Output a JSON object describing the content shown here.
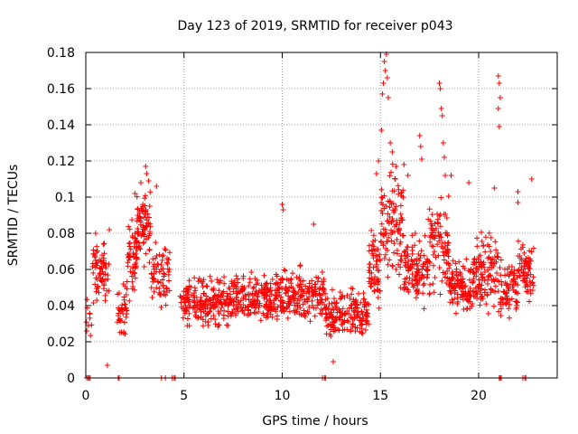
{
  "chart_data": {
    "type": "scatter",
    "title": "Day 123 of 2019, SRMTID for receiver p043",
    "xlabel": "GPS time / hours",
    "ylabel": "SRMTID / TECUs",
    "xlim": [
      0,
      24
    ],
    "ylim": [
      0,
      0.18
    ],
    "xticks": [
      0,
      5,
      10,
      15,
      20
    ],
    "xtick_labels": [
      "0",
      "5",
      "10",
      "15",
      "20"
    ],
    "yticks": [
      0,
      0.02,
      0.04,
      0.06,
      0.08,
      0.1,
      0.12,
      0.14,
      0.16,
      0.18
    ],
    "ytick_labels": [
      "0",
      "0.02",
      "0.04",
      "0.06",
      "0.08",
      "0.1",
      "0.12",
      "0.14",
      "0.16",
      "0.18"
    ],
    "grid": true,
    "marker": "+",
    "color": "#ff0000",
    "series": [
      {
        "name": "p043",
        "segments": [
          {
            "x_start": 0.0,
            "x_end": 0.3,
            "baseline": 0.03,
            "spread": 0.02,
            "count": 10
          },
          {
            "x_start": 0.3,
            "x_end": 1.2,
            "baseline": 0.058,
            "spread": 0.022,
            "count": 70
          },
          {
            "x_start": 1.6,
            "x_end": 2.1,
            "baseline": 0.038,
            "spread": 0.02,
            "count": 40
          },
          {
            "x_start": 2.1,
            "x_end": 2.6,
            "baseline": 0.065,
            "spread": 0.028,
            "count": 55
          },
          {
            "x_start": 2.6,
            "x_end": 3.3,
            "baseline": 0.085,
            "spread": 0.028,
            "count": 80
          },
          {
            "x_start": 3.3,
            "x_end": 4.3,
            "baseline": 0.058,
            "spread": 0.022,
            "count": 70
          },
          {
            "x_start": 4.8,
            "x_end": 7.5,
            "baseline": 0.042,
            "spread": 0.018,
            "count": 220
          },
          {
            "x_start": 7.5,
            "x_end": 9.5,
            "baseline": 0.043,
            "spread": 0.018,
            "count": 170
          },
          {
            "x_start": 9.5,
            "x_end": 12.2,
            "baseline": 0.045,
            "spread": 0.02,
            "count": 220
          },
          {
            "x_start": 12.2,
            "x_end": 14.4,
            "baseline": 0.036,
            "spread": 0.018,
            "count": 180
          },
          {
            "x_start": 14.4,
            "x_end": 15.0,
            "baseline": 0.06,
            "spread": 0.03,
            "count": 60
          },
          {
            "x_start": 15.0,
            "x_end": 16.2,
            "baseline": 0.085,
            "spread": 0.045,
            "count": 110
          },
          {
            "x_start": 16.2,
            "x_end": 17.4,
            "baseline": 0.06,
            "spread": 0.025,
            "count": 110
          },
          {
            "x_start": 17.4,
            "x_end": 18.5,
            "baseline": 0.072,
            "spread": 0.035,
            "count": 100
          },
          {
            "x_start": 18.5,
            "x_end": 19.7,
            "baseline": 0.05,
            "spread": 0.02,
            "count": 110
          },
          {
            "x_start": 19.7,
            "x_end": 21.0,
            "baseline": 0.06,
            "spread": 0.028,
            "count": 120
          },
          {
            "x_start": 21.0,
            "x_end": 22.0,
            "baseline": 0.05,
            "spread": 0.022,
            "count": 80
          },
          {
            "x_start": 22.0,
            "x_end": 22.8,
            "baseline": 0.058,
            "spread": 0.022,
            "count": 70
          }
        ],
        "spikes": [
          {
            "x": 0.5,
            "y": 0.08
          },
          {
            "x": 0.9,
            "y": 0.074
          },
          {
            "x": 1.2,
            "y": 0.082
          },
          {
            "x": 2.5,
            "y": 0.102
          },
          {
            "x": 2.8,
            "y": 0.108
          },
          {
            "x": 3.05,
            "y": 0.117
          },
          {
            "x": 3.1,
            "y": 0.113
          },
          {
            "x": 3.2,
            "y": 0.109
          },
          {
            "x": 3.6,
            "y": 0.106
          },
          {
            "x": 10.0,
            "y": 0.096
          },
          {
            "x": 10.05,
            "y": 0.093
          },
          {
            "x": 11.6,
            "y": 0.085
          },
          {
            "x": 14.8,
            "y": 0.113
          },
          {
            "x": 14.9,
            "y": 0.12
          },
          {
            "x": 15.05,
            "y": 0.137
          },
          {
            "x": 15.1,
            "y": 0.157
          },
          {
            "x": 15.15,
            "y": 0.163
          },
          {
            "x": 15.2,
            "y": 0.175
          },
          {
            "x": 15.25,
            "y": 0.17
          },
          {
            "x": 15.3,
            "y": 0.179
          },
          {
            "x": 15.35,
            "y": 0.166
          },
          {
            "x": 15.4,
            "y": 0.155
          },
          {
            "x": 15.5,
            "y": 0.13
          },
          {
            "x": 15.6,
            "y": 0.125
          },
          {
            "x": 15.8,
            "y": 0.117
          },
          {
            "x": 16.2,
            "y": 0.118
          },
          {
            "x": 16.4,
            "y": 0.112
          },
          {
            "x": 17.0,
            "y": 0.134
          },
          {
            "x": 17.05,
            "y": 0.128
          },
          {
            "x": 17.1,
            "y": 0.121
          },
          {
            "x": 18.0,
            "y": 0.163
          },
          {
            "x": 18.05,
            "y": 0.16
          },
          {
            "x": 18.1,
            "y": 0.149
          },
          {
            "x": 18.15,
            "y": 0.145
          },
          {
            "x": 18.2,
            "y": 0.13
          },
          {
            "x": 18.25,
            "y": 0.122
          },
          {
            "x": 18.3,
            "y": 0.112
          },
          {
            "x": 18.6,
            "y": 0.112
          },
          {
            "x": 19.5,
            "y": 0.108
          },
          {
            "x": 21.0,
            "y": 0.167
          },
          {
            "x": 21.05,
            "y": 0.163
          },
          {
            "x": 21.1,
            "y": 0.155
          },
          {
            "x": 21.0,
            "y": 0.149
          },
          {
            "x": 21.05,
            "y": 0.139
          },
          {
            "x": 20.8,
            "y": 0.105
          },
          {
            "x": 22.0,
            "y": 0.103
          },
          {
            "x": 22.0,
            "y": 0.097
          },
          {
            "x": 22.7,
            "y": 0.11
          },
          {
            "x": 1.1,
            "y": 0.007
          },
          {
            "x": 12.6,
            "y": 0.009
          }
        ],
        "zero_points": [
          0.05,
          0.12,
          0.18,
          0.22,
          1.65,
          1.7,
          3.85,
          4.05,
          4.4,
          4.5,
          4.55,
          12.05,
          12.15,
          12.2,
          21.05,
          21.1,
          21.15,
          22.25,
          22.35,
          22.4
        ]
      }
    ]
  }
}
